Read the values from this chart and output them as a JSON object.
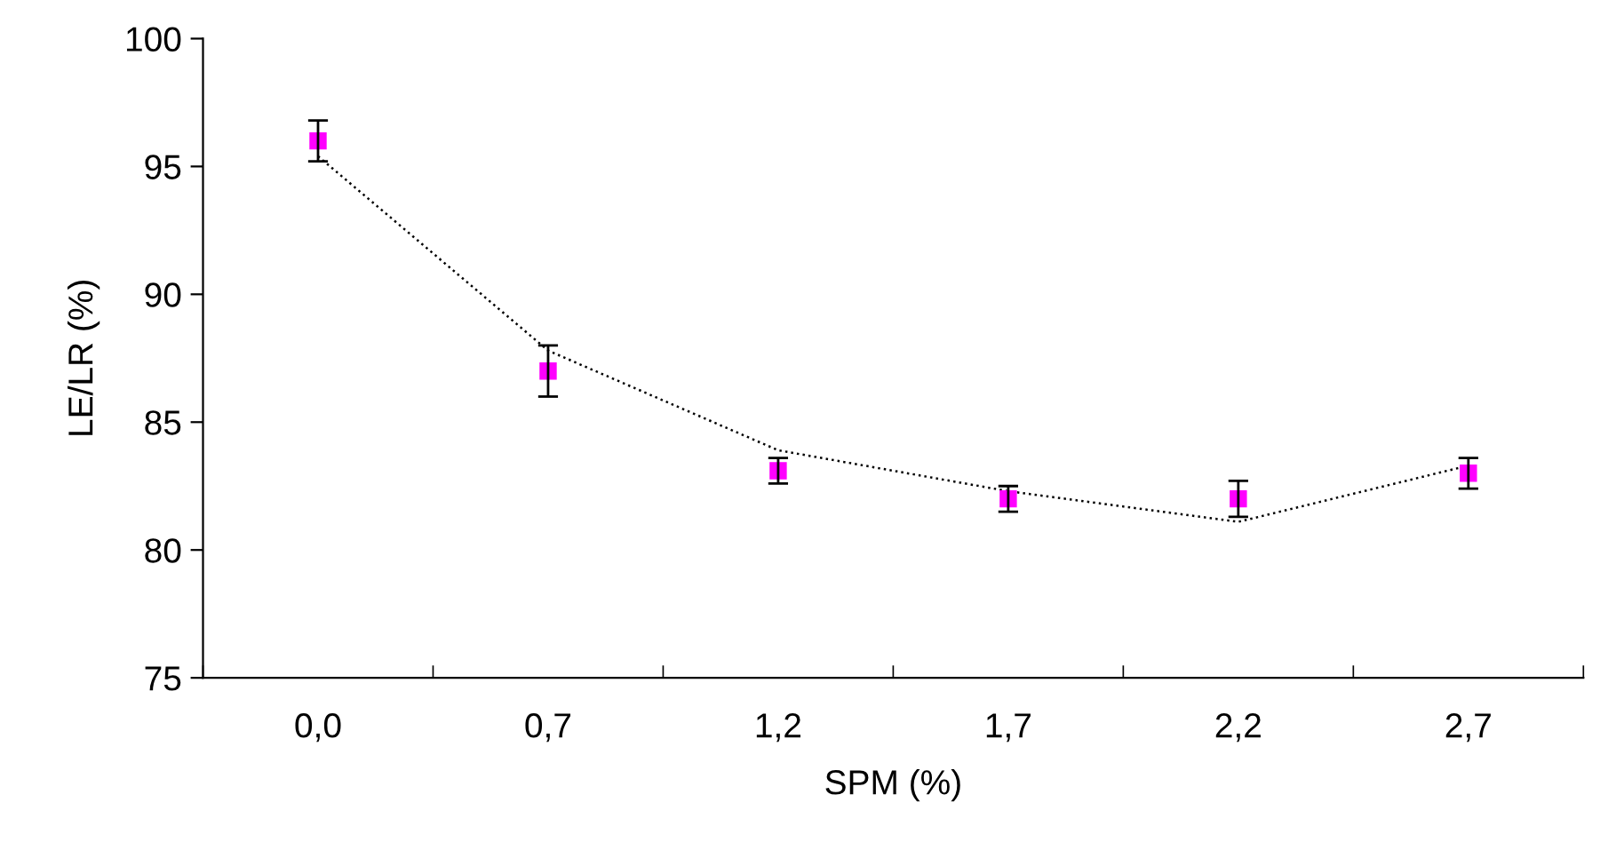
{
  "chart_data": {
    "type": "scatter",
    "xlabel": "SPM (%)",
    "ylabel": "LE/LR (%)",
    "categories": [
      "0,0",
      "0,7",
      "1,2",
      "1,7",
      "2,2",
      "2,7"
    ],
    "ylim": [
      75,
      100
    ],
    "yticks": [
      75,
      80,
      85,
      90,
      95,
      100
    ],
    "grid": false,
    "series": [
      {
        "color": "#ff00ff",
        "marker": "square",
        "values": [
          96,
          87,
          83.1,
          82,
          82,
          83
        ],
        "errors": [
          0.8,
          1,
          0.5,
          0.5,
          0.7,
          0.6
        ]
      },
      {
        "type": "line",
        "color": "#000000",
        "line_style": "dotted",
        "marker": "none",
        "values": [
          95.4,
          87.8,
          83.9,
          82.3,
          81.1,
          83.3
        ]
      }
    ]
  }
}
